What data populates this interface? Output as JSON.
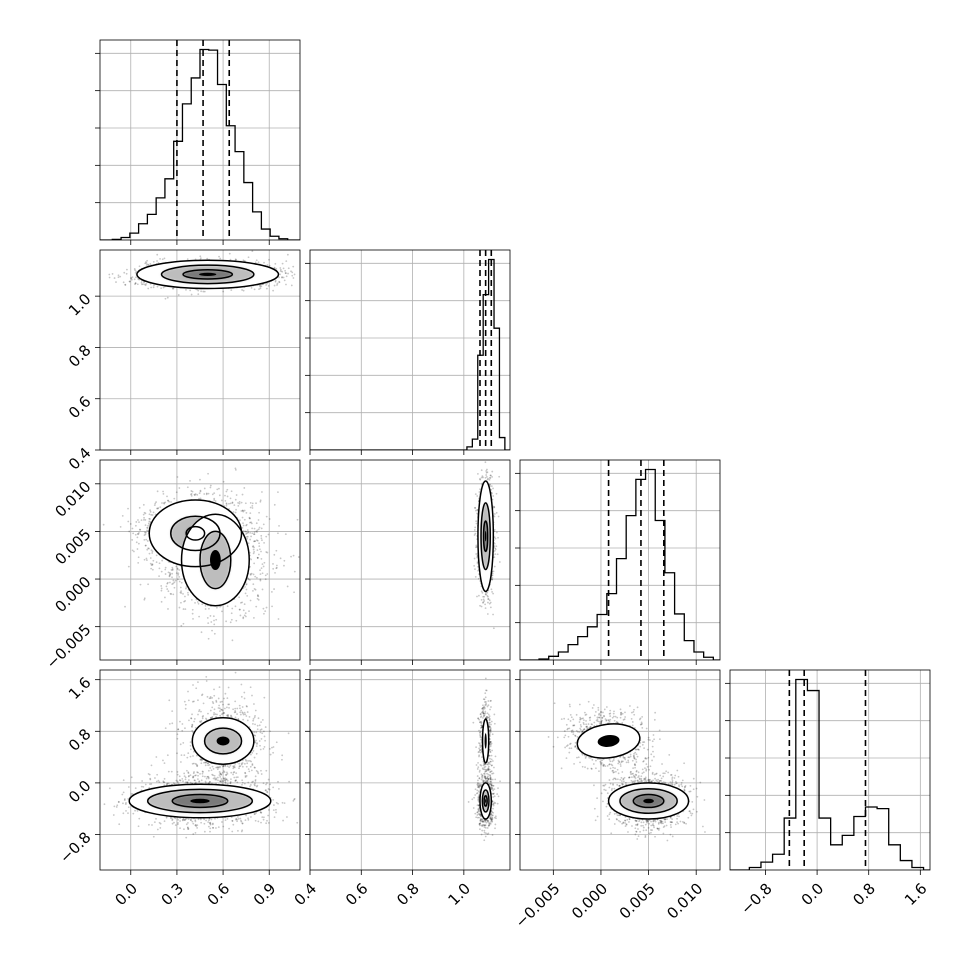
{
  "chart_data": {
    "type": "corner",
    "n_params": 4,
    "quantile_levels": [
      0.16,
      0.5,
      0.84
    ],
    "grid": true,
    "params": [
      {
        "range": [
          -0.2,
          1.1
        ],
        "ticks": [
          0.0,
          0.3,
          0.6,
          0.9
        ],
        "tick_labels": [
          "0.0",
          "0.3",
          "0.6",
          "0.9"
        ],
        "quantiles": [
          0.3,
          0.47,
          0.64
        ],
        "hist": {
          "range": [
            -0.12,
            1.02
          ],
          "values": [
            0.2,
            0.8,
            2.2,
            5.2,
            8.2,
            13.5,
            19.6,
            31.6,
            43.6,
            51.9,
            61.0,
            60.8,
            49.8,
            36.6,
            28.3,
            18.4,
            9.0,
            3.5,
            1.2,
            0.4
          ]
        }
      },
      {
        "range": [
          0.4,
          1.18
        ],
        "ticks": [
          0.4,
          0.6,
          0.8,
          1.0
        ],
        "tick_labels": [
          "0.4",
          "0.6",
          "0.8",
          "1.0"
        ],
        "quantiles": [
          1.063,
          1.085,
          1.107
        ],
        "hist": {
          "range": [
            1.012,
            1.16
          ],
          "values": [
            1.0,
            3.5,
            30.5,
            50.0,
            61.3,
            39.2,
            4.0
          ]
        }
      },
      {
        "range": [
          -0.0085,
          0.0125
        ],
        "ticks": [
          -0.005,
          0.0,
          0.005,
          0.01
        ],
        "tick_labels": [
          "−0.005",
          "0.000",
          "0.005",
          "0.010"
        ],
        "quantiles": [
          0.0008,
          0.0042,
          0.0066
        ],
        "hist": {
          "range": [
            -0.0065,
            0.0118
          ],
          "values": [
            0.3,
            1.2,
            2.6,
            5.0,
            7.6,
            10.8,
            14.8,
            21.6,
            33.0,
            47.0,
            58.8,
            62.0,
            45.4,
            28.4,
            15.0,
            6.3,
            2.6,
            0.9
          ]
        }
      },
      {
        "range": [
          -1.35,
          1.75
        ],
        "ticks": [
          -0.8,
          0.0,
          0.8,
          1.6
        ],
        "tick_labels": [
          "−0.8",
          "0.0",
          "0.8",
          "1.6"
        ],
        "quantiles": [
          -0.43,
          -0.2,
          0.75
        ],
        "hist": {
          "range": [
            -1.05,
            1.65
          ],
          "values": [
            0.8,
            2.5,
            5.0,
            16.5,
            60.5,
            57.0,
            16.5,
            8.0,
            11.0,
            17.0,
            20.0,
            19.5,
            8.0,
            3.0,
            0.8
          ]
        }
      }
    ],
    "pairs": [
      {
        "x_param": 0,
        "y_param": 1,
        "cloud_count": 2200,
        "modes": [
          {
            "cx": 0.5,
            "cy": 1.085,
            "sx": 0.16,
            "sy": 0.018,
            "weight": 1.0,
            "rho": 0.0,
            "contours": [
              {
                "sx": 0.46,
                "sy": 0.055
              },
              {
                "sx": 0.3,
                "sy": 0.036
              },
              {
                "sx": 0.16,
                "sy": 0.018
              }
            ]
          }
        ]
      },
      {
        "x_param": 0,
        "y_param": 2,
        "cloud_count": 2400,
        "modes": [
          {
            "cx": 0.42,
            "cy": 0.0048,
            "sx": 0.13,
            "sy": 0.0014,
            "weight": 0.6,
            "rho": 0.0,
            "contours": [
              {
                "sx": 0.3,
                "sy": 0.0035
              },
              {
                "sx": 0.16,
                "sy": 0.0018
              },
              {
                "sx": 0.06,
                "sy": 0.0007
              }
            ]
          },
          {
            "cx": 0.55,
            "cy": 0.002,
            "sx": 0.13,
            "sy": 0.0022,
            "weight": 0.4,
            "rho": 0.0,
            "contours": [
              {
                "sx": 0.22,
                "sy": 0.0048
              },
              {
                "sx": 0.1,
                "sy": 0.003
              }
            ]
          }
        ]
      },
      {
        "x_param": 1,
        "y_param": 2,
        "cloud_count": 1200,
        "modes": [
          {
            "cx": 1.085,
            "cy": 0.0045,
            "sx": 0.012,
            "sy": 0.0022,
            "weight": 1.0,
            "rho": 0.0,
            "contours": [
              {
                "sx": 0.03,
                "sy": 0.0058
              },
              {
                "sx": 0.018,
                "sy": 0.0035
              },
              {
                "sx": 0.008,
                "sy": 0.0016
              }
            ]
          }
        ]
      },
      {
        "x_param": 0,
        "y_param": 3,
        "cloud_count": 2200,
        "modes": [
          {
            "cx": 0.45,
            "cy": -0.28,
            "sx": 0.16,
            "sy": 0.14,
            "weight": 0.62,
            "rho": 0.0,
            "contours": [
              {
                "sx": 0.46,
                "sy": 0.26
              },
              {
                "sx": 0.34,
                "sy": 0.18
              },
              {
                "sx": 0.18,
                "sy": 0.1
              }
            ]
          },
          {
            "cx": 0.6,
            "cy": 0.65,
            "sx": 0.1,
            "sy": 0.25,
            "weight": 0.38,
            "rho": 0.0,
            "contours": [
              {
                "sx": 0.2,
                "sy": 0.36
              },
              {
                "sx": 0.12,
                "sy": 0.2
              }
            ]
          }
        ]
      },
      {
        "x_param": 1,
        "y_param": 3,
        "cloud_count": 1100,
        "modes": [
          {
            "cx": 1.085,
            "cy": -0.28,
            "sx": 0.012,
            "sy": 0.16,
            "weight": 0.62,
            "rho": 0.0,
            "contours": [
              {
                "sx": 0.022,
                "sy": 0.28
              },
              {
                "sx": 0.013,
                "sy": 0.17
              },
              {
                "sx": 0.006,
                "sy": 0.08
              }
            ]
          },
          {
            "cx": 1.085,
            "cy": 0.65,
            "sx": 0.01,
            "sy": 0.22,
            "weight": 0.38,
            "rho": 0.0,
            "contours": [
              {
                "sx": 0.012,
                "sy": 0.34
              }
            ]
          }
        ]
      },
      {
        "x_param": 2,
        "y_param": 3,
        "cloud_count": 2200,
        "modes": [
          {
            "cx": 0.005,
            "cy": -0.28,
            "sx": 0.0014,
            "sy": 0.15,
            "weight": 0.62,
            "rho": 0.0,
            "contours": [
              {
                "sx": 0.0042,
                "sy": 0.28
              },
              {
                "sx": 0.003,
                "sy": 0.19
              },
              {
                "sx": 0.0016,
                "sy": 0.1
              }
            ]
          },
          {
            "cx": 0.0008,
            "cy": 0.65,
            "sx": 0.0015,
            "sy": 0.17,
            "weight": 0.38,
            "rho": -0.2,
            "contours": [
              {
                "sx": 0.0033,
                "sy": 0.26
              }
            ]
          }
        ]
      }
    ]
  }
}
